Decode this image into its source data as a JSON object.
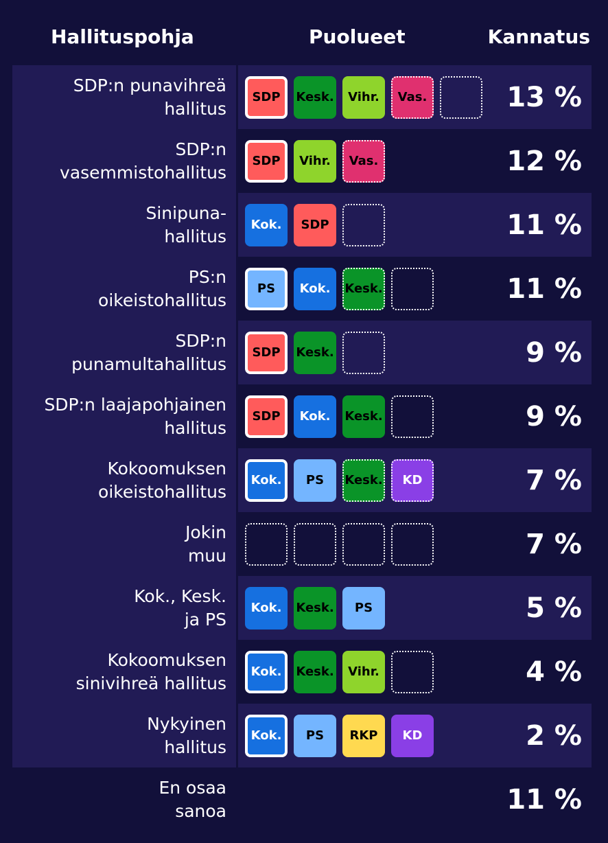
{
  "headers": {
    "col1": "Hallituspohja",
    "col2": "Puolueet",
    "col3": "Kannatus"
  },
  "colors": {
    "background": "#12103a",
    "row_shade": "#211b55",
    "SDP": "#ff5b5b",
    "Kesk.": "#0a9428",
    "Vihr.": "#8fd42c",
    "Vas.": "#e0306f",
    "Kok.": "#1670e0",
    "PS": "#74b5ff",
    "KD": "#8a3fe6",
    "RKP": "#ffd950"
  },
  "rows": [
    {
      "label": "SDP:n punavihreä hallitus",
      "value": "13 %",
      "parties": [
        {
          "name": "SDP",
          "style": "lead"
        },
        {
          "name": "Kesk.",
          "style": "solid"
        },
        {
          "name": "Vihr.",
          "style": "solid"
        },
        {
          "name": "Vas.",
          "style": "dotted"
        },
        {
          "name": "",
          "style": "empty"
        }
      ]
    },
    {
      "label": "SDP:n vasemmistohallitus",
      "value": "12 %",
      "parties": [
        {
          "name": "SDP",
          "style": "lead"
        },
        {
          "name": "Vihr.",
          "style": "solid"
        },
        {
          "name": "Vas.",
          "style": "dotted"
        }
      ]
    },
    {
      "label": "Sinipuna-hallitus",
      "value": "11 %",
      "parties": [
        {
          "name": "Kok.",
          "style": "solid"
        },
        {
          "name": "SDP",
          "style": "solid"
        },
        {
          "name": "",
          "style": "empty"
        }
      ]
    },
    {
      "label": "PS:n oikeistohallitus",
      "value": "11 %",
      "parties": [
        {
          "name": "PS",
          "style": "lead"
        },
        {
          "name": "Kok.",
          "style": "solid"
        },
        {
          "name": "Kesk.",
          "style": "dotted"
        },
        {
          "name": "",
          "style": "empty"
        }
      ]
    },
    {
      "label": "SDP:n punamultahallitus",
      "value": "9 %",
      "parties": [
        {
          "name": "SDP",
          "style": "lead"
        },
        {
          "name": "Kesk.",
          "style": "solid"
        },
        {
          "name": "",
          "style": "empty"
        }
      ]
    },
    {
      "label": "SDP:n laajapohjainen hallitus",
      "value": "9 %",
      "parties": [
        {
          "name": "SDP",
          "style": "lead"
        },
        {
          "name": "Kok.",
          "style": "solid"
        },
        {
          "name": "Kesk.",
          "style": "solid"
        },
        {
          "name": "",
          "style": "empty"
        }
      ]
    },
    {
      "label": "Kokoomuksen oikeistohallitus",
      "value": "7 %",
      "parties": [
        {
          "name": "Kok.",
          "style": "lead"
        },
        {
          "name": "PS",
          "style": "solid"
        },
        {
          "name": "Kesk.",
          "style": "dotted"
        },
        {
          "name": "KD",
          "style": "dotted"
        }
      ]
    },
    {
      "label": "Jokin muu",
      "value": "7 %",
      "parties": [
        {
          "name": "",
          "style": "empty"
        },
        {
          "name": "",
          "style": "empty"
        },
        {
          "name": "",
          "style": "empty"
        },
        {
          "name": "",
          "style": "empty"
        }
      ]
    },
    {
      "label": "Kok., Kesk. ja PS",
      "value": "5 %",
      "parties": [
        {
          "name": "Kok.",
          "style": "solid"
        },
        {
          "name": "Kesk.",
          "style": "solid"
        },
        {
          "name": "PS",
          "style": "solid"
        }
      ]
    },
    {
      "label": "Kokoomuksen sinivihreä hallitus",
      "value": "4 %",
      "parties": [
        {
          "name": "Kok.",
          "style": "lead"
        },
        {
          "name": "Kesk.",
          "style": "solid"
        },
        {
          "name": "Vihr.",
          "style": "solid"
        },
        {
          "name": "",
          "style": "empty"
        }
      ]
    },
    {
      "label": "Nykyinen hallitus",
      "value": "2 %",
      "parties": [
        {
          "name": "Kok.",
          "style": "lead"
        },
        {
          "name": "PS",
          "style": "solid"
        },
        {
          "name": "RKP",
          "style": "solid"
        },
        {
          "name": "KD",
          "style": "solid"
        }
      ]
    },
    {
      "label": "En osaa sanoa",
      "value": "11 %",
      "parties": []
    }
  ]
}
